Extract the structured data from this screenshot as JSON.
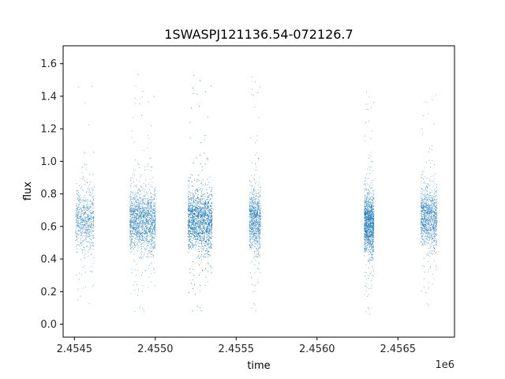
{
  "chart_data": {
    "type": "scatter",
    "title": "1SWASPJ121136.54-072126.7",
    "xlabel": "time",
    "ylabel": "flux",
    "x_offset_label": "1e6",
    "xlim": [
      2454430,
      2456850
    ],
    "ylim": [
      -0.08,
      1.71
    ],
    "x_ticks": [
      2454500,
      2455000,
      2455500,
      2456000,
      2456500,
      2457000
    ],
    "x_tick_labels": [
      "2.4545",
      "2.4550",
      "2.4555",
      "2.4560",
      "2.4565"
    ],
    "y_ticks": [
      0.0,
      0.2,
      0.4,
      0.6,
      0.8,
      1.0,
      1.2,
      1.4,
      1.6
    ],
    "y_tick_labels": [
      "0.0",
      "0.2",
      "0.4",
      "0.6",
      "0.8",
      "1.0",
      "1.2",
      "1.4",
      "1.6"
    ],
    "grid": false,
    "marker_color": "#1f77b4",
    "series": [
      {
        "name": "",
        "clusters": [
          {
            "x_range": [
              2454505,
              2454620
            ],
            "y_median": 0.64,
            "y_min": 0.02,
            "y_max": 1.56,
            "n": 700
          },
          {
            "x_range": [
              2454840,
              2455000
            ],
            "y_median": 0.64,
            "y_min": 0.0,
            "y_max": 1.56,
            "n": 1600
          },
          {
            "x_range": [
              2455200,
              2455350
            ],
            "y_median": 0.64,
            "y_min": 0.0,
            "y_max": 1.63,
            "n": 2500
          },
          {
            "x_range": [
              2455580,
              2455650
            ],
            "y_median": 0.64,
            "y_min": 0.02,
            "y_max": 1.62,
            "n": 900
          },
          {
            "x_range": [
              2456290,
              2456350
            ],
            "y_median": 0.62,
            "y_min": 0.0,
            "y_max": 1.52,
            "n": 1400
          },
          {
            "x_range": [
              2456640,
              2456740
            ],
            "y_median": 0.66,
            "y_min": 0.02,
            "y_max": 1.57,
            "n": 1100
          }
        ]
      }
    ]
  }
}
